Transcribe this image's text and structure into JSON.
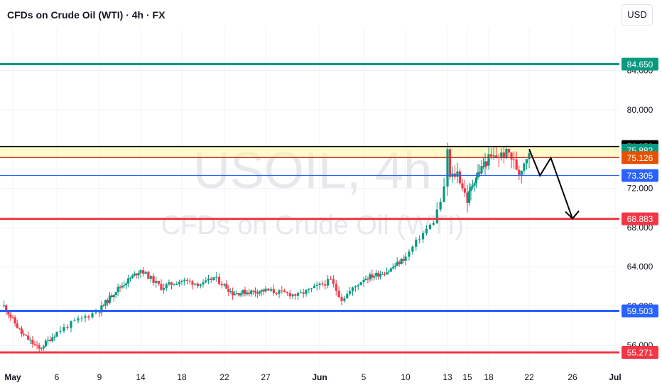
{
  "header": {
    "title": "CFDs on Crude Oil (WTI) · 4h · FX",
    "currency_button": "USD"
  },
  "watermark": {
    "symbol": "USOIL, 4h",
    "description": "CFDs on Crude Oil (WTI)"
  },
  "colors": {
    "up": "#089981",
    "down": "#f23645",
    "teal_line": "#089981",
    "blue_line": "#2962ff",
    "red_line": "#f23645",
    "zone_fill": "#fff59d",
    "grid": "#f0f3fa",
    "axis_text": "#131722"
  },
  "chart_data": {
    "type": "candlestick",
    "symbol": "USOIL",
    "timeframe": "4h",
    "y_axis": {
      "range": [
        53.9,
        88.3
      ],
      "ticks": [
        "56.000",
        "60.000",
        "64.000",
        "68.000",
        "72.000",
        "76.000",
        "80.000",
        "84.000"
      ]
    },
    "x_axis": {
      "labels": [
        "May",
        "6",
        "9",
        "14",
        "18",
        "22",
        "27",
        "Jun",
        "5",
        "10",
        "13",
        "15",
        "18",
        "22",
        "26",
        "Jul"
      ]
    },
    "price_levels": [
      {
        "value": 84.65,
        "label": "84.650",
        "color": "#089981",
        "style": "horizontal-line"
      },
      {
        "value": 76.258,
        "label": "76.258",
        "color": "#000000",
        "style": "zone-top"
      },
      {
        "value": 75.882,
        "label": "75.882",
        "color": "#089981",
        "style": "last-price"
      },
      {
        "value": 75.126,
        "label": "75.126",
        "color": "#e65100",
        "style": "zone-bottom"
      },
      {
        "value": 73.305,
        "label": "73.305",
        "color": "#2962ff",
        "style": "horizontal-line"
      },
      {
        "value": 68.883,
        "label": "68.883",
        "color": "#f23645",
        "style": "horizontal-line"
      },
      {
        "value": 59.503,
        "label": "59.503",
        "color": "#2962ff",
        "style": "horizontal-line"
      },
      {
        "value": 55.271,
        "label": "55.271",
        "color": "#f23645",
        "style": "horizontal-line"
      }
    ],
    "resistance_zone": {
      "top": 76.258,
      "bottom": 75.126
    },
    "forecast_path": [
      {
        "date": "Jun 22",
        "price": 76.0
      },
      {
        "date": "Jun 23",
        "price": 73.3
      },
      {
        "date": "Jun 24",
        "price": 75.1
      },
      {
        "date": "Jun 26",
        "price": 68.9
      }
    ],
    "candle_path_anchors": [
      {
        "date": "Apr 30",
        "price": 60.0
      },
      {
        "date": "May 2",
        "price": 57.2
      },
      {
        "date": "May 4",
        "price": 55.6
      },
      {
        "date": "May 7",
        "price": 58.2
      },
      {
        "date": "May 9",
        "price": 59.6
      },
      {
        "date": "May 11",
        "price": 61.6
      },
      {
        "date": "May 14",
        "price": 63.7
      },
      {
        "date": "May 16",
        "price": 61.9
      },
      {
        "date": "May 18",
        "price": 62.6
      },
      {
        "date": "May 20",
        "price": 62.2
      },
      {
        "date": "May 21",
        "price": 62.9
      },
      {
        "date": "May 23",
        "price": 61.3
      },
      {
        "date": "May 27",
        "price": 61.6
      },
      {
        "date": "May 30",
        "price": 61.1
      },
      {
        "date": "Jun 2",
        "price": 62.6
      },
      {
        "date": "Jun 3",
        "price": 60.7
      },
      {
        "date": "Jun 5",
        "price": 62.8
      },
      {
        "date": "Jun 8",
        "price": 63.6
      },
      {
        "date": "Jun 10",
        "price": 65.0
      },
      {
        "date": "Jun 11",
        "price": 67.0
      },
      {
        "date": "Jun 12",
        "price": 68.6
      },
      {
        "date": "Jun 13",
        "price": 72.8
      },
      {
        "date": "Jun 14",
        "price": 73.6
      },
      {
        "date": "Jun 15",
        "price": 70.8
      },
      {
        "date": "Jun 16",
        "price": 73.0
      },
      {
        "date": "Jun 18",
        "price": 75.0
      },
      {
        "date": "Jun 20",
        "price": 75.6
      },
      {
        "date": "Jun 21",
        "price": 73.6
      },
      {
        "date": "Jun 22",
        "price": 75.88
      }
    ]
  }
}
